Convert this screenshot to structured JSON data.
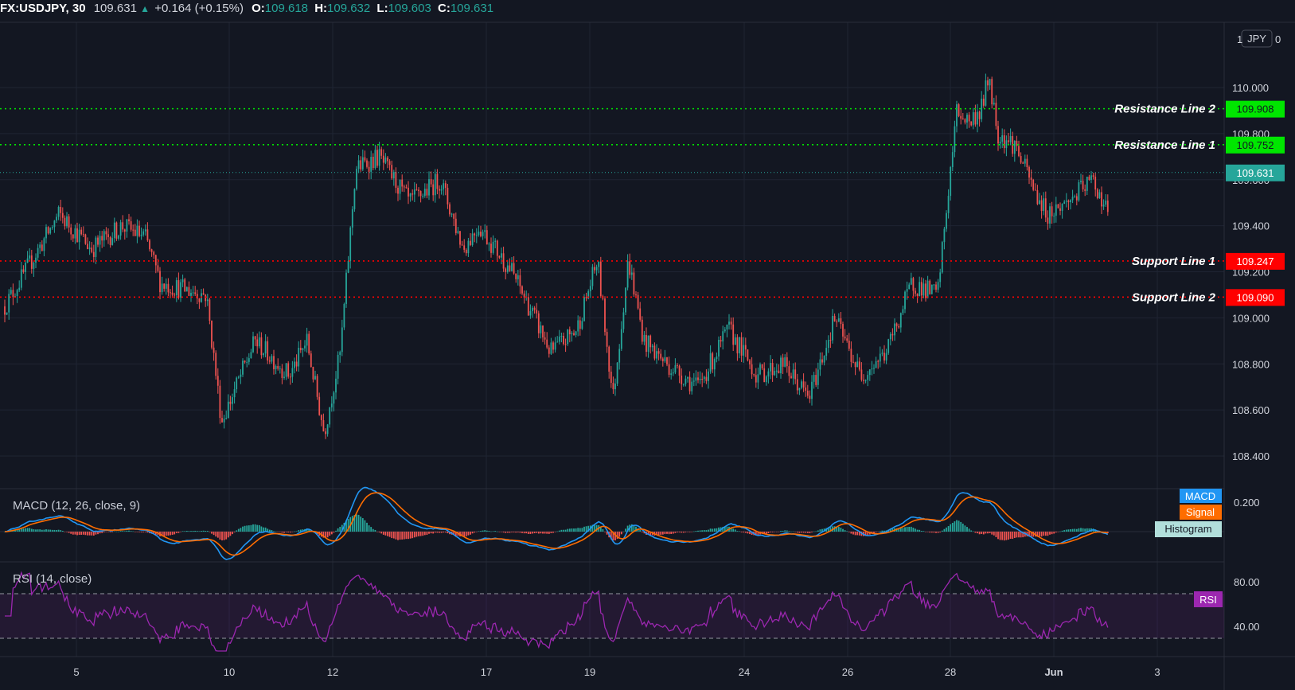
{
  "header": {
    "symbol": "FX:USDJPY, 30",
    "last": "109.631",
    "change": "+0.164 (+0.15%)",
    "o_label": "O:",
    "o_value": "109.618",
    "h_label": "H:",
    "h_value": "109.632",
    "l_label": "L:",
    "l_value": "109.603",
    "c_label": "C:",
    "c_value": "109.631",
    "up_arrow": "▲"
  },
  "colors": {
    "background": "#131722",
    "grid": "#1f2433",
    "up": "#26a69a",
    "down": "#ef5350",
    "resistance": "#00e600",
    "support": "#ff0000",
    "last_price": "#26a69a",
    "macd": "#2196f3",
    "signal": "#ff6d00",
    "rsi": "#9c27b0"
  },
  "chart_data": {
    "type": "candlestick",
    "y_range": [
      108.3,
      110.2
    ],
    "y_ticks": [
      "110.000",
      "109.800",
      "109.600",
      "109.400",
      "109.200",
      "109.000",
      "108.800",
      "108.600",
      "108.400"
    ],
    "x_ticks": [
      "5",
      "10",
      "12",
      "17",
      "19",
      "24",
      "26",
      "28",
      "Jun",
      "3"
    ],
    "top_partial_label": "1",
    "currency": "JPY",
    "last_price": "109.631",
    "price_path_anchors": [
      {
        "x": "May 4",
        "close": 109.05
      },
      {
        "x": "May 4",
        "close": 109.45
      },
      {
        "x": "May 5",
        "close": 109.3
      },
      {
        "x": "May 6",
        "close": 109.4
      },
      {
        "x": "May 7",
        "close": 109.35
      },
      {
        "x": "May 7",
        "close": 109.15
      },
      {
        "x": "May 9",
        "close": 109.1
      },
      {
        "x": "May 9",
        "close": 108.55
      },
      {
        "x": "May 10",
        "close": 108.9
      },
      {
        "x": "May 11",
        "close": 108.75
      },
      {
        "x": "May 11",
        "close": 108.9
      },
      {
        "x": "May 11",
        "close": 108.5
      },
      {
        "x": "May 12",
        "close": 108.85
      },
      {
        "x": "May 12",
        "close": 109.65
      },
      {
        "x": "May 13",
        "close": 109.7
      },
      {
        "x": "May 14",
        "close": 109.5
      },
      {
        "x": "May 15",
        "close": 109.6
      },
      {
        "x": "May 16",
        "close": 109.3
      },
      {
        "x": "May 16",
        "close": 109.4
      },
      {
        "x": "May 17",
        "close": 109.2
      },
      {
        "x": "May 18",
        "close": 108.85
      },
      {
        "x": "May 18",
        "close": 108.95
      },
      {
        "x": "May 19",
        "close": 109.25
      },
      {
        "x": "May 19",
        "close": 108.65
      },
      {
        "x": "May 20",
        "close": 109.25
      },
      {
        "x": "May 20",
        "close": 108.9
      },
      {
        "x": "May 21",
        "close": 108.8
      },
      {
        "x": "May 22",
        "close": 108.7
      },
      {
        "x": "May 23",
        "close": 108.95
      },
      {
        "x": "May 24",
        "close": 108.75
      },
      {
        "x": "May 24",
        "close": 108.8
      },
      {
        "x": "May 25",
        "close": 108.65
      },
      {
        "x": "May 25",
        "close": 109.0
      },
      {
        "x": "May 26",
        "close": 108.75
      },
      {
        "x": "May 26",
        "close": 108.85
      },
      {
        "x": "May 27",
        "close": 109.15
      },
      {
        "x": "May 27",
        "close": 109.1
      },
      {
        "x": "May 28",
        "close": 109.9
      },
      {
        "x": "May 28",
        "close": 109.85
      },
      {
        "x": "May 29",
        "close": 109.9
      },
      {
        "x": "May 29",
        "close": 110.05
      },
      {
        "x": "May 29",
        "close": 109.8
      },
      {
        "x": "May 30",
        "close": 109.75
      },
      {
        "x": "May 31",
        "close": 109.55
      },
      {
        "x": "May 31",
        "close": 109.45
      },
      {
        "x": "Jun 1",
        "close": 109.5
      },
      {
        "x": "Jun 1",
        "close": 109.6
      },
      {
        "x": "Jun 2",
        "close": 109.4
      },
      {
        "x": "Jun 2",
        "close": 109.5
      },
      {
        "x": "Jun 2",
        "close": 109.631
      }
    ],
    "horizontal_lines": [
      {
        "label": "Resistance Line 2",
        "value": "109.908",
        "kind": "resistance"
      },
      {
        "label": "Resistance Line 1",
        "value": "109.752",
        "kind": "resistance"
      },
      {
        "label": "Support Line 1",
        "value": "109.247",
        "kind": "support"
      },
      {
        "label": "Support Line 2",
        "value": "109.090",
        "kind": "support"
      }
    ],
    "macd": {
      "title": "MACD (12, 26, close, 9)",
      "axis_label": "0.200",
      "legend": [
        "MACD",
        "Signal",
        "Histogram"
      ]
    },
    "rsi": {
      "title": "RSI (14, close)",
      "axis_labels": [
        "80.00",
        "40.00"
      ],
      "upper_band": 70,
      "lower_band": 30,
      "legend": "RSI"
    }
  }
}
